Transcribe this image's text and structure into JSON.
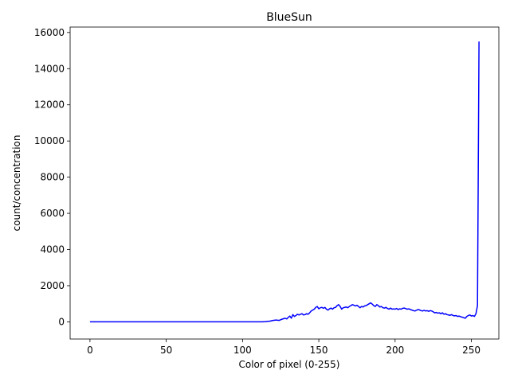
{
  "chart_data": {
    "type": "line",
    "title": "BlueSun",
    "xlabel": "Color of pixel (0-255)",
    "ylabel": "count/concentration",
    "xlim": [
      -13,
      268
    ],
    "ylim": [
      -950,
      16300
    ],
    "xticks": [
      0,
      50,
      100,
      150,
      200,
      250
    ],
    "yticks": [
      0,
      2000,
      4000,
      6000,
      8000,
      10000,
      12000,
      14000,
      16000
    ],
    "grid": false,
    "legend": "none",
    "series": [
      {
        "color": "#0000ff",
        "points": [
          [
            0,
            0
          ],
          [
            20,
            0
          ],
          [
            40,
            0
          ],
          [
            60,
            0
          ],
          [
            80,
            0
          ],
          [
            100,
            0
          ],
          [
            110,
            0
          ],
          [
            113,
            0
          ],
          [
            115,
            10
          ],
          [
            118,
            40
          ],
          [
            120,
            80
          ],
          [
            122,
            100
          ],
          [
            124,
            80
          ],
          [
            126,
            150
          ],
          [
            128,
            200
          ],
          [
            129,
            160
          ],
          [
            130,
            250
          ],
          [
            131,
            320
          ],
          [
            132,
            200
          ],
          [
            133,
            400
          ],
          [
            134,
            300
          ],
          [
            135,
            350
          ],
          [
            136,
            420
          ],
          [
            137,
            380
          ],
          [
            138,
            420
          ],
          [
            139,
            450
          ],
          [
            140,
            380
          ],
          [
            141,
            400
          ],
          [
            142,
            450
          ],
          [
            143,
            420
          ],
          [
            144,
            500
          ],
          [
            145,
            600
          ],
          [
            146,
            650
          ],
          [
            147,
            700
          ],
          [
            148,
            800
          ],
          [
            149,
            850
          ],
          [
            150,
            720
          ],
          [
            151,
            780
          ],
          [
            152,
            800
          ],
          [
            153,
            750
          ],
          [
            154,
            800
          ],
          [
            155,
            700
          ],
          [
            156,
            650
          ],
          [
            157,
            720
          ],
          [
            158,
            760
          ],
          [
            159,
            700
          ],
          [
            160,
            780
          ],
          [
            161,
            800
          ],
          [
            162,
            900
          ],
          [
            163,
            950
          ],
          [
            164,
            850
          ],
          [
            165,
            700
          ],
          [
            166,
            780
          ],
          [
            167,
            800
          ],
          [
            168,
            820
          ],
          [
            169,
            780
          ],
          [
            170,
            850
          ],
          [
            171,
            900
          ],
          [
            172,
            950
          ],
          [
            173,
            920
          ],
          [
            174,
            880
          ],
          [
            175,
            920
          ],
          [
            176,
            850
          ],
          [
            177,
            780
          ],
          [
            178,
            850
          ],
          [
            179,
            820
          ],
          [
            180,
            880
          ],
          [
            181,
            900
          ],
          [
            182,
            950
          ],
          [
            183,
            1000
          ],
          [
            184,
            1050
          ],
          [
            185,
            980
          ],
          [
            186,
            900
          ],
          [
            187,
            850
          ],
          [
            188,
            950
          ],
          [
            189,
            900
          ],
          [
            190,
            820
          ],
          [
            191,
            850
          ],
          [
            192,
            780
          ],
          [
            193,
            760
          ],
          [
            194,
            800
          ],
          [
            195,
            740
          ],
          [
            196,
            700
          ],
          [
            197,
            760
          ],
          [
            198,
            700
          ],
          [
            199,
            720
          ],
          [
            200,
            700
          ],
          [
            201,
            740
          ],
          [
            202,
            680
          ],
          [
            203,
            720
          ],
          [
            204,
            700
          ],
          [
            205,
            750
          ],
          [
            206,
            760
          ],
          [
            207,
            730
          ],
          [
            208,
            700
          ],
          [
            209,
            720
          ],
          [
            210,
            680
          ],
          [
            211,
            650
          ],
          [
            212,
            620
          ],
          [
            213,
            600
          ],
          [
            214,
            640
          ],
          [
            215,
            680
          ],
          [
            216,
            660
          ],
          [
            217,
            620
          ],
          [
            218,
            600
          ],
          [
            219,
            640
          ],
          [
            220,
            600
          ],
          [
            221,
            620
          ],
          [
            222,
            580
          ],
          [
            223,
            620
          ],
          [
            224,
            600
          ],
          [
            225,
            550
          ],
          [
            226,
            500
          ],
          [
            227,
            520
          ],
          [
            228,
            480
          ],
          [
            229,
            500
          ],
          [
            230,
            450
          ],
          [
            231,
            500
          ],
          [
            232,
            420
          ],
          [
            233,
            450
          ],
          [
            234,
            400
          ],
          [
            235,
            380
          ],
          [
            236,
            360
          ],
          [
            237,
            400
          ],
          [
            238,
            350
          ],
          [
            239,
            330
          ],
          [
            240,
            350
          ],
          [
            241,
            300
          ],
          [
            242,
            320
          ],
          [
            243,
            280
          ],
          [
            244,
            260
          ],
          [
            245,
            230
          ],
          [
            246,
            200
          ],
          [
            247,
            300
          ],
          [
            248,
            350
          ],
          [
            249,
            380
          ],
          [
            250,
            320
          ],
          [
            251,
            350
          ],
          [
            252,
            300
          ],
          [
            253,
            450
          ],
          [
            254,
            900
          ],
          [
            255,
            15500
          ]
        ]
      }
    ]
  }
}
